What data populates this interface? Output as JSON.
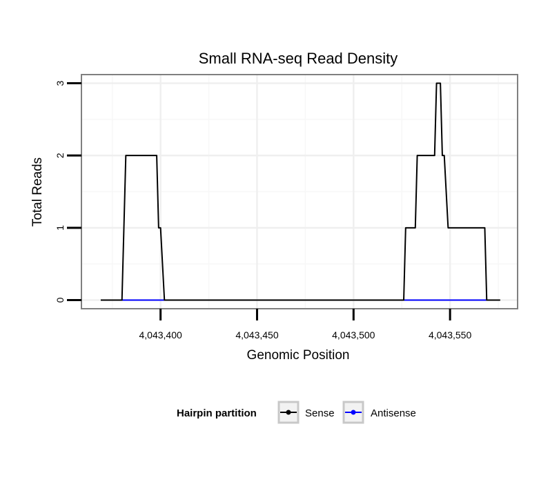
{
  "chart_data": {
    "type": "line",
    "title": "Small RNA-seq Read Density",
    "xlabel": "Genomic Position",
    "ylabel": "Total Reads",
    "xlim": [
      4043359,
      4043585
    ],
    "ylim": [
      -0.12,
      3.12
    ],
    "x_ticks": [
      4043400,
      4043450,
      4043500,
      4043550
    ],
    "x_tick_labels": [
      "4,043,400",
      "4,043,450",
      "4,043,500",
      "4,043,550"
    ],
    "y_ticks": [
      0,
      1,
      2,
      3
    ],
    "y_tick_labels": [
      "0",
      "1",
      "2",
      "3"
    ],
    "grid": true,
    "legend": {
      "title": "Hairpin partition",
      "position": "bottom",
      "entries": [
        {
          "name": "Sense",
          "color": "#000000"
        },
        {
          "name": "Antisense",
          "color": "#0000ff"
        }
      ]
    },
    "series": [
      {
        "name": "Sense",
        "color": "#000000",
        "x": [
          4043369,
          4043380,
          4043382,
          4043398,
          4043399,
          4043400,
          4043402,
          4043427,
          4043495,
          4043526,
          4043527,
          4043532,
          4043533,
          4043542,
          4043543,
          4043545,
          4043546,
          4043547,
          4043549,
          4043551,
          4043568,
          4043569,
          4043576
        ],
        "y": [
          0,
          0,
          2,
          2,
          1,
          1,
          0,
          0,
          0,
          0,
          1,
          1,
          2,
          2,
          3,
          3,
          2,
          2,
          1,
          1,
          1,
          0,
          0
        ]
      },
      {
        "name": "Antisense",
        "color": "#0000ff",
        "x": [
          4043380,
          4043402,
          4043526,
          4043569
        ],
        "y": [
          0,
          0,
          0,
          0
        ],
        "segments": [
          [
            0,
            1
          ],
          [
            2,
            3
          ]
        ]
      }
    ]
  }
}
